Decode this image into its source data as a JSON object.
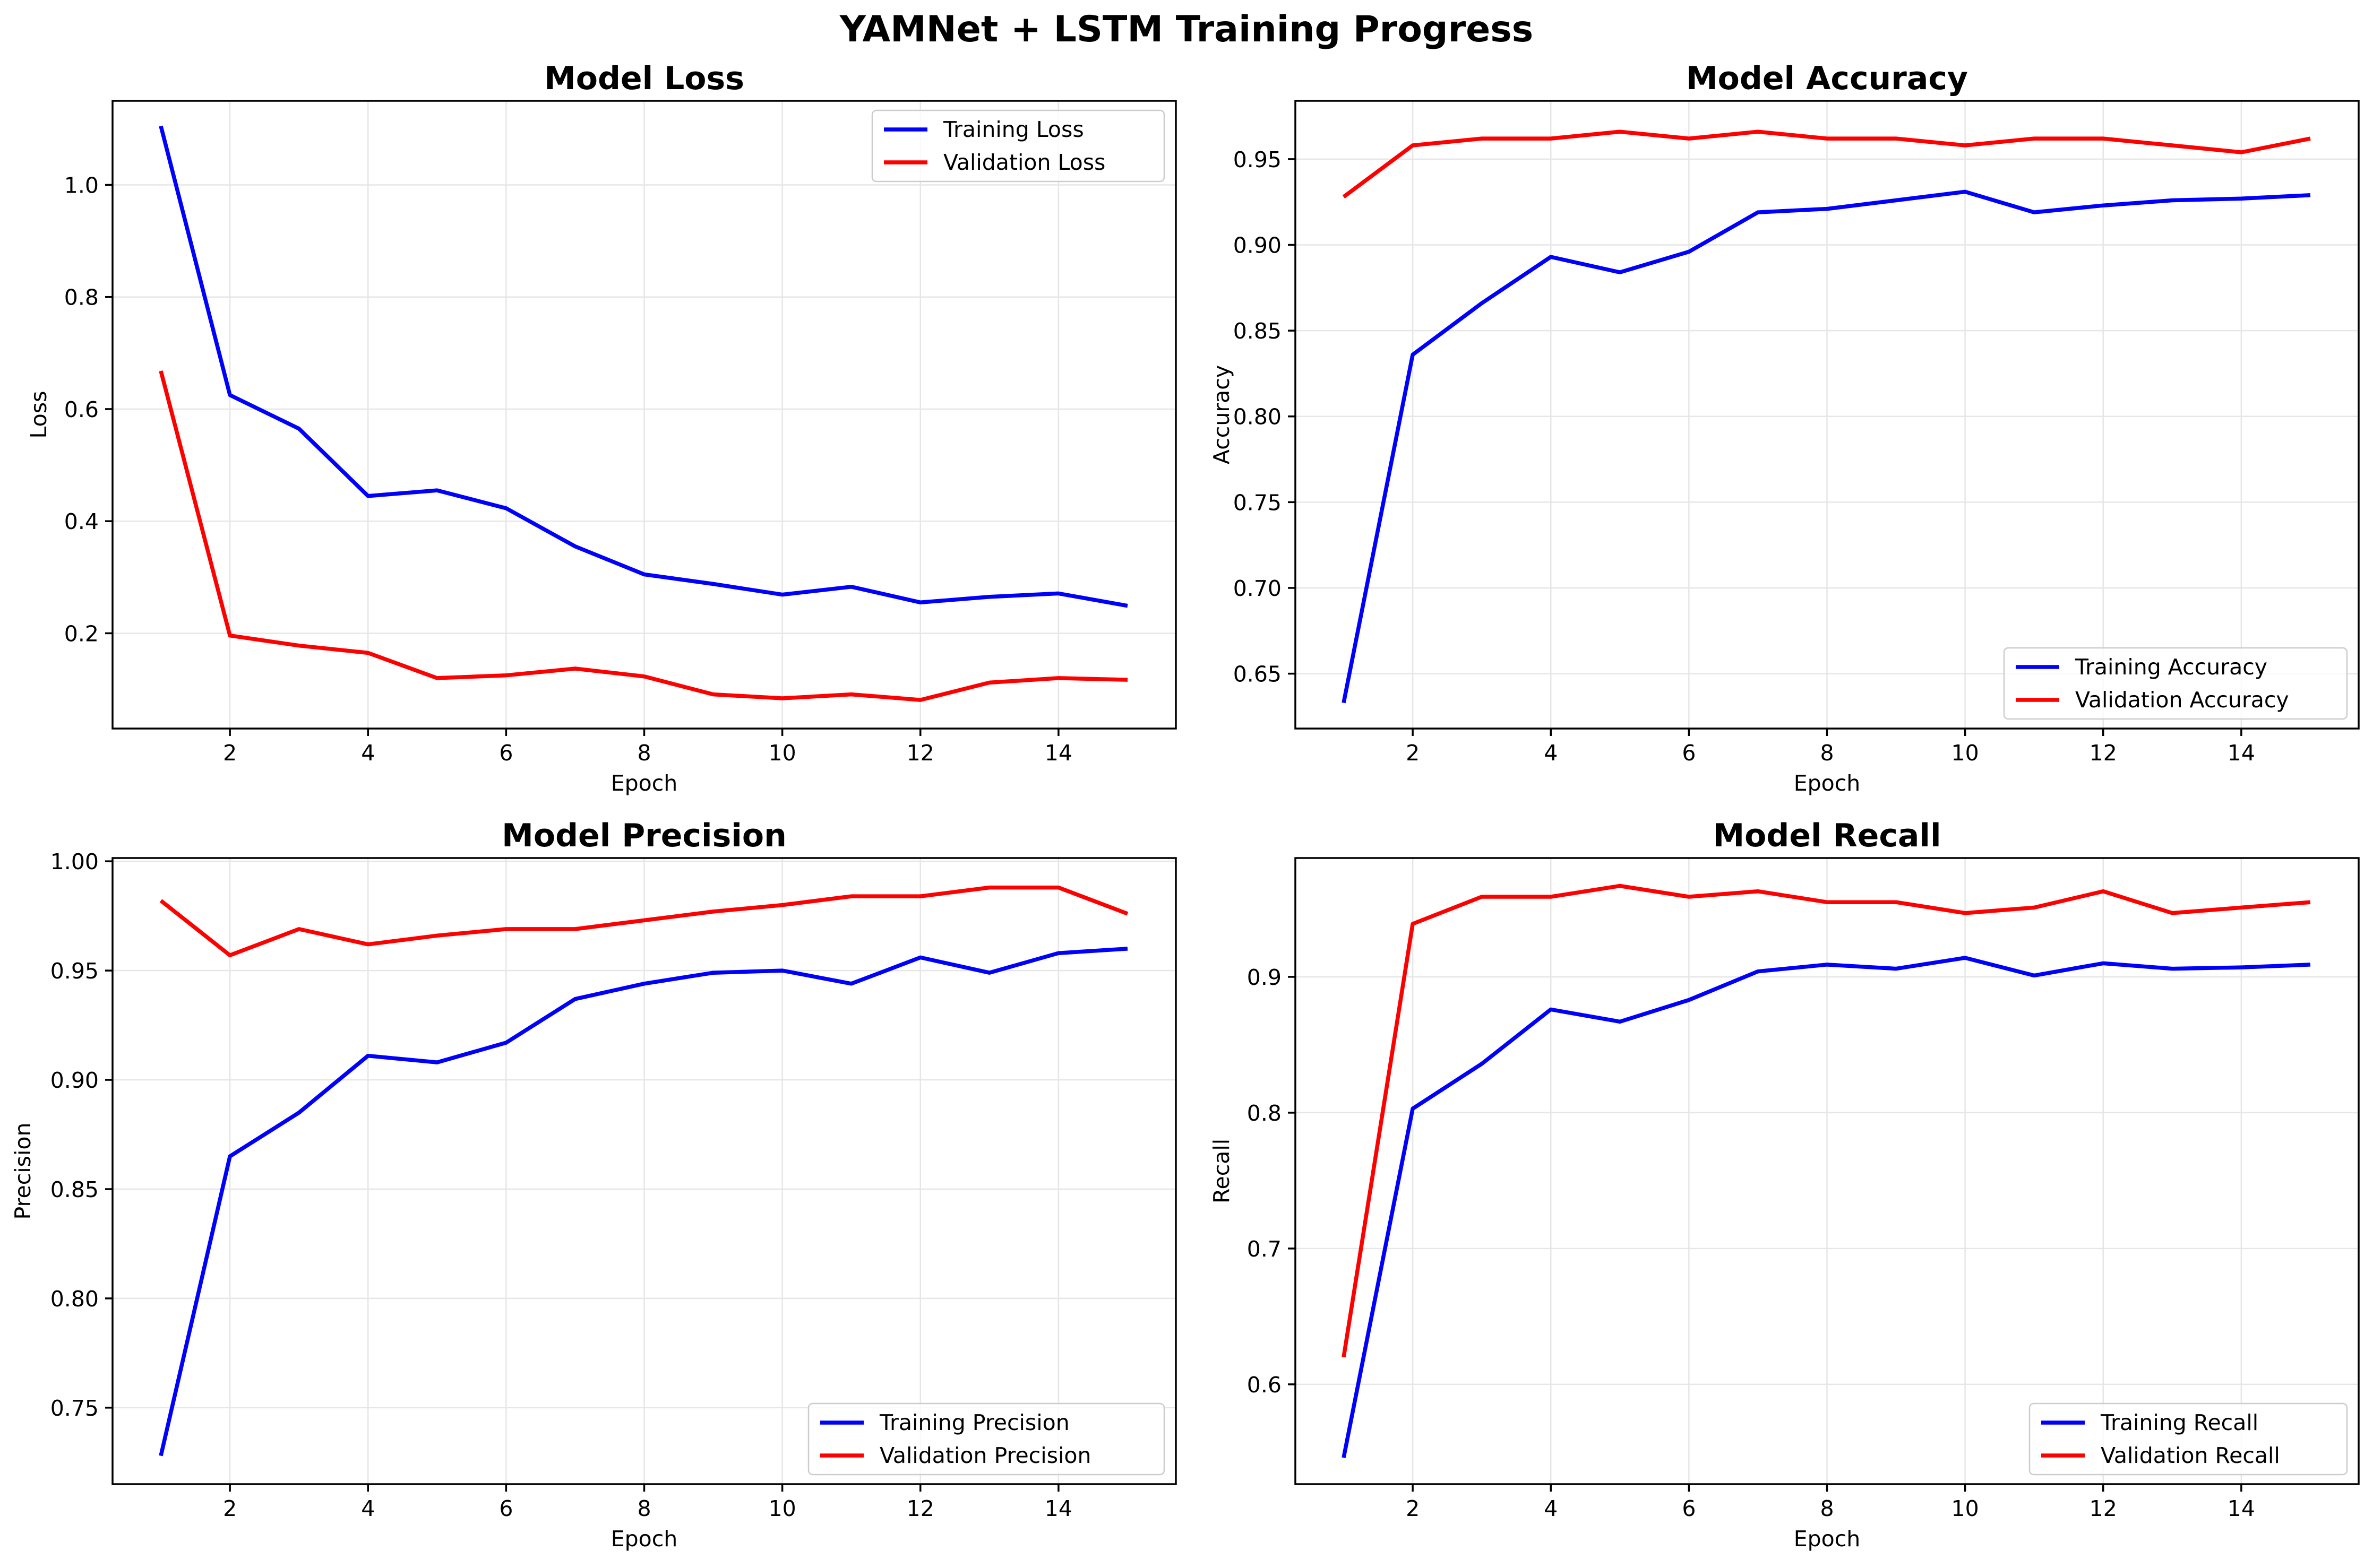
{
  "figure_title": "YAMNet + LSTM Training Progress",
  "colors": {
    "training": "#0000ff",
    "validation": "#ff0000"
  },
  "chart_data": [
    {
      "type": "line",
      "title": "Model Loss",
      "xlabel": "Epoch",
      "ylabel": "Loss",
      "x": [
        1,
        2,
        3,
        4,
        5,
        6,
        7,
        8,
        9,
        10,
        11,
        12,
        13,
        14,
        15
      ],
      "xlim": [
        0.3,
        15.7
      ],
      "xticks": [
        2,
        4,
        6,
        8,
        10,
        12,
        14
      ],
      "ylim": [
        0.03,
        1.15
      ],
      "yticks": [
        0.2,
        0.4,
        0.6,
        0.8,
        1.0
      ],
      "ytick_decimals": 1,
      "grid": true,
      "legend_loc": "upper right",
      "series": [
        {
          "name": "Training Loss",
          "color": "#0000ff",
          "values": [
            1.105,
            0.625,
            0.565,
            0.445,
            0.455,
            0.423,
            0.355,
            0.305,
            0.288,
            0.269,
            0.283,
            0.255,
            0.265,
            0.271,
            0.249
          ]
        },
        {
          "name": "Validation Loss",
          "color": "#ff0000",
          "values": [
            0.668,
            0.196,
            0.178,
            0.165,
            0.12,
            0.125,
            0.137,
            0.123,
            0.091,
            0.084,
            0.091,
            0.081,
            0.112,
            0.12,
            0.117
          ]
        }
      ]
    },
    {
      "type": "line",
      "title": "Model Accuracy",
      "xlabel": "Epoch",
      "ylabel": "Accuracy",
      "x": [
        1,
        2,
        3,
        4,
        5,
        6,
        7,
        8,
        9,
        10,
        11,
        12,
        13,
        14,
        15
      ],
      "xlim": [
        0.3,
        15.7
      ],
      "xticks": [
        2,
        4,
        6,
        8,
        10,
        12,
        14
      ],
      "ylim": [
        0.618,
        0.984
      ],
      "yticks": [
        0.65,
        0.7,
        0.75,
        0.8,
        0.85,
        0.9,
        0.95
      ],
      "ytick_decimals": 2,
      "grid": true,
      "legend_loc": "lower right",
      "series": [
        {
          "name": "Training Accuracy",
          "color": "#0000ff",
          "values": [
            0.633,
            0.836,
            0.866,
            0.893,
            0.884,
            0.896,
            0.919,
            0.921,
            0.926,
            0.931,
            0.919,
            0.923,
            0.926,
            0.927,
            0.929
          ]
        },
        {
          "name": "Validation Accuracy",
          "color": "#ff0000",
          "values": [
            0.928,
            0.958,
            0.962,
            0.962,
            0.966,
            0.962,
            0.966,
            0.962,
            0.962,
            0.958,
            0.962,
            0.962,
            0.958,
            0.954,
            0.962
          ]
        }
      ]
    },
    {
      "type": "line",
      "title": "Model Precision",
      "xlabel": "Epoch",
      "ylabel": "Precision",
      "x": [
        1,
        2,
        3,
        4,
        5,
        6,
        7,
        8,
        9,
        10,
        11,
        12,
        13,
        14,
        15
      ],
      "xlim": [
        0.3,
        15.7
      ],
      "xticks": [
        2,
        4,
        6,
        8,
        10,
        12,
        14
      ],
      "ylim": [
        0.715,
        1.0015
      ],
      "yticks": [
        0.75,
        0.8,
        0.85,
        0.9,
        0.95,
        1.0
      ],
      "ytick_decimals": 2,
      "grid": true,
      "legend_loc": "lower right",
      "series": [
        {
          "name": "Training Precision",
          "color": "#0000ff",
          "values": [
            0.728,
            0.865,
            0.885,
            0.911,
            0.908,
            0.917,
            0.937,
            0.944,
            0.949,
            0.95,
            0.944,
            0.956,
            0.949,
            0.958,
            0.96
          ]
        },
        {
          "name": "Validation Precision",
          "color": "#ff0000",
          "values": [
            0.982,
            0.957,
            0.969,
            0.962,
            0.966,
            0.969,
            0.969,
            0.973,
            0.977,
            0.98,
            0.984,
            0.984,
            0.988,
            0.988,
            0.976
          ]
        }
      ]
    },
    {
      "type": "line",
      "title": "Model Recall",
      "xlabel": "Epoch",
      "ylabel": "Recall",
      "x": [
        1,
        2,
        3,
        4,
        5,
        6,
        7,
        8,
        9,
        10,
        11,
        12,
        13,
        14,
        15
      ],
      "xlim": [
        0.3,
        15.7
      ],
      "xticks": [
        2,
        4,
        6,
        8,
        10,
        12,
        14
      ],
      "ylim": [
        0.5265,
        0.9875
      ],
      "yticks": [
        0.6,
        0.7,
        0.8,
        0.9
      ],
      "ytick_decimals": 1,
      "grid": true,
      "legend_loc": "lower right",
      "series": [
        {
          "name": "Training Recall",
          "color": "#0000ff",
          "values": [
            0.546,
            0.803,
            0.836,
            0.876,
            0.867,
            0.883,
            0.904,
            0.909,
            0.906,
            0.914,
            0.901,
            0.91,
            0.906,
            0.907,
            0.909
          ]
        },
        {
          "name": "Validation Recall",
          "color": "#ff0000",
          "values": [
            0.62,
            0.939,
            0.959,
            0.959,
            0.967,
            0.959,
            0.963,
            0.955,
            0.955,
            0.947,
            0.951,
            0.963,
            0.947,
            0.951,
            0.955
          ]
        }
      ]
    }
  ]
}
